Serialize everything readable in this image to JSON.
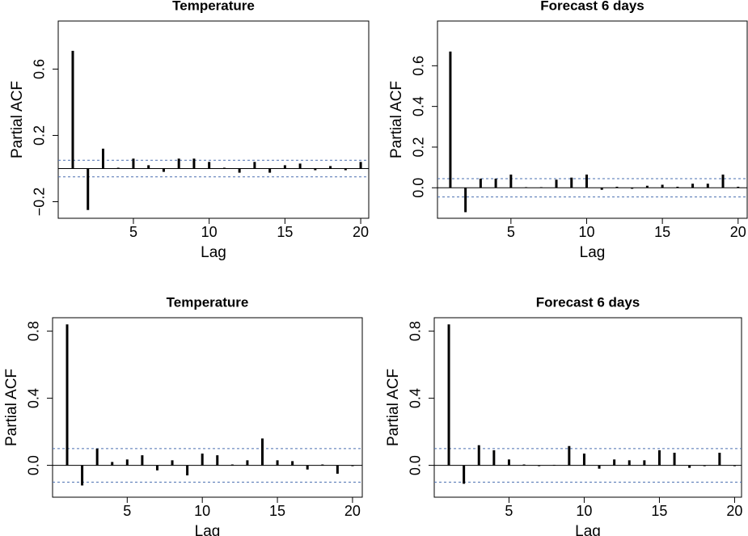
{
  "chart_data": [
    {
      "type": "bar",
      "title": "Temperature",
      "x_label": "Lag",
      "y_label": "Partial ACF",
      "color": "#000000",
      "ci_color": "#4a6fb0",
      "x": [
        1,
        2,
        3,
        4,
        5,
        6,
        7,
        8,
        9,
        10,
        11,
        12,
        13,
        14,
        15,
        16,
        17,
        18,
        19,
        20
      ],
      "values": [
        0.71,
        -0.25,
        0.12,
        0.005,
        0.06,
        0.02,
        -0.02,
        0.06,
        0.06,
        0.04,
        0.005,
        -0.025,
        0.04,
        -0.025,
        0.02,
        0.03,
        -0.01,
        0.015,
        -0.01,
        0.04
      ],
      "ci": [
        -0.05,
        0.05
      ],
      "xlim": [
        0.04,
        20.53
      ],
      "xticks": [
        5,
        10,
        15,
        20
      ],
      "ylim": [
        -0.3,
        0.89
      ],
      "yticks": [
        {
          "value": -0.2,
          "label": "−0.2"
        },
        0.2,
        0.6
      ]
    },
    {
      "type": "bar",
      "title": "Forecast 6 days",
      "x_label": "Lag",
      "y_label": "Partial ACF",
      "color": "#000000",
      "ci_color": "#4a6fb0",
      "x": [
        1,
        2,
        3,
        4,
        5,
        6,
        7,
        8,
        9,
        10,
        11,
        12,
        13,
        14,
        15,
        16,
        17,
        18,
        19,
        20
      ],
      "values": [
        0.67,
        -0.12,
        0.045,
        0.045,
        0.065,
        0.003,
        0.003,
        0.04,
        0.05,
        0.065,
        -0.01,
        0.005,
        -0.005,
        0.01,
        0.015,
        0.005,
        0.02,
        0.02,
        0.065,
        0.005
      ],
      "ci": [
        -0.045,
        0.045
      ],
      "xlim": [
        0.15,
        20.6
      ],
      "xticks": [
        5,
        10,
        15,
        20
      ],
      "ylim": [
        -0.15,
        0.82
      ],
      "yticks": [
        {
          "value": 0,
          "label": "0.0"
        },
        0.2,
        0.4,
        0.6
      ]
    },
    {
      "type": "bar",
      "title": "Temperature",
      "x_label": "Lag",
      "y_label": "Partial ACF",
      "color": "#000000",
      "ci_color": "#4a6fb0",
      "x": [
        1,
        2,
        3,
        4,
        5,
        6,
        7,
        8,
        9,
        10,
        11,
        12,
        13,
        14,
        15,
        16,
        17,
        18,
        19,
        20
      ],
      "values": [
        0.84,
        -0.12,
        0.1,
        0.02,
        0.035,
        0.06,
        -0.03,
        0.03,
        -0.06,
        0.07,
        0.06,
        0.005,
        0.03,
        0.16,
        0.03,
        0.025,
        -0.025,
        0.005,
        -0.05,
        -0.005
      ],
      "ci": [
        -0.1,
        0.1
      ],
      "xlim": [
        0.03,
        20.65
      ],
      "xticks": [
        5,
        10,
        15,
        20
      ],
      "ylim": [
        -0.19,
        0.88
      ],
      "yticks": [
        {
          "value": 0,
          "label": "0.0"
        },
        0.4,
        0.8
      ]
    },
    {
      "type": "bar",
      "title": "Forecast 6 days",
      "x_label": "Lag",
      "y_label": "Partial ACF",
      "color": "#000000",
      "ci_color": "#4a6fb0",
      "x": [
        1,
        2,
        3,
        4,
        5,
        6,
        7,
        8,
        9,
        10,
        11,
        12,
        13,
        14,
        15,
        16,
        17,
        18,
        19,
        20
      ],
      "values": [
        0.84,
        -0.11,
        0.12,
        0.09,
        0.035,
        0.005,
        -0.005,
        0.003,
        0.115,
        0.07,
        -0.02,
        0.035,
        0.03,
        0.03,
        0.09,
        0.075,
        -0.015,
        -0.005,
        0.075,
        -0.005
      ],
      "ci": [
        -0.1,
        0.1
      ],
      "xlim": [
        0.03,
        20.46
      ],
      "xticks": [
        5,
        10,
        15,
        20
      ],
      "ylim": [
        -0.19,
        0.88
      ],
      "yticks": [
        {
          "value": 0,
          "label": "0.0"
        },
        0.4,
        0.8
      ]
    }
  ]
}
